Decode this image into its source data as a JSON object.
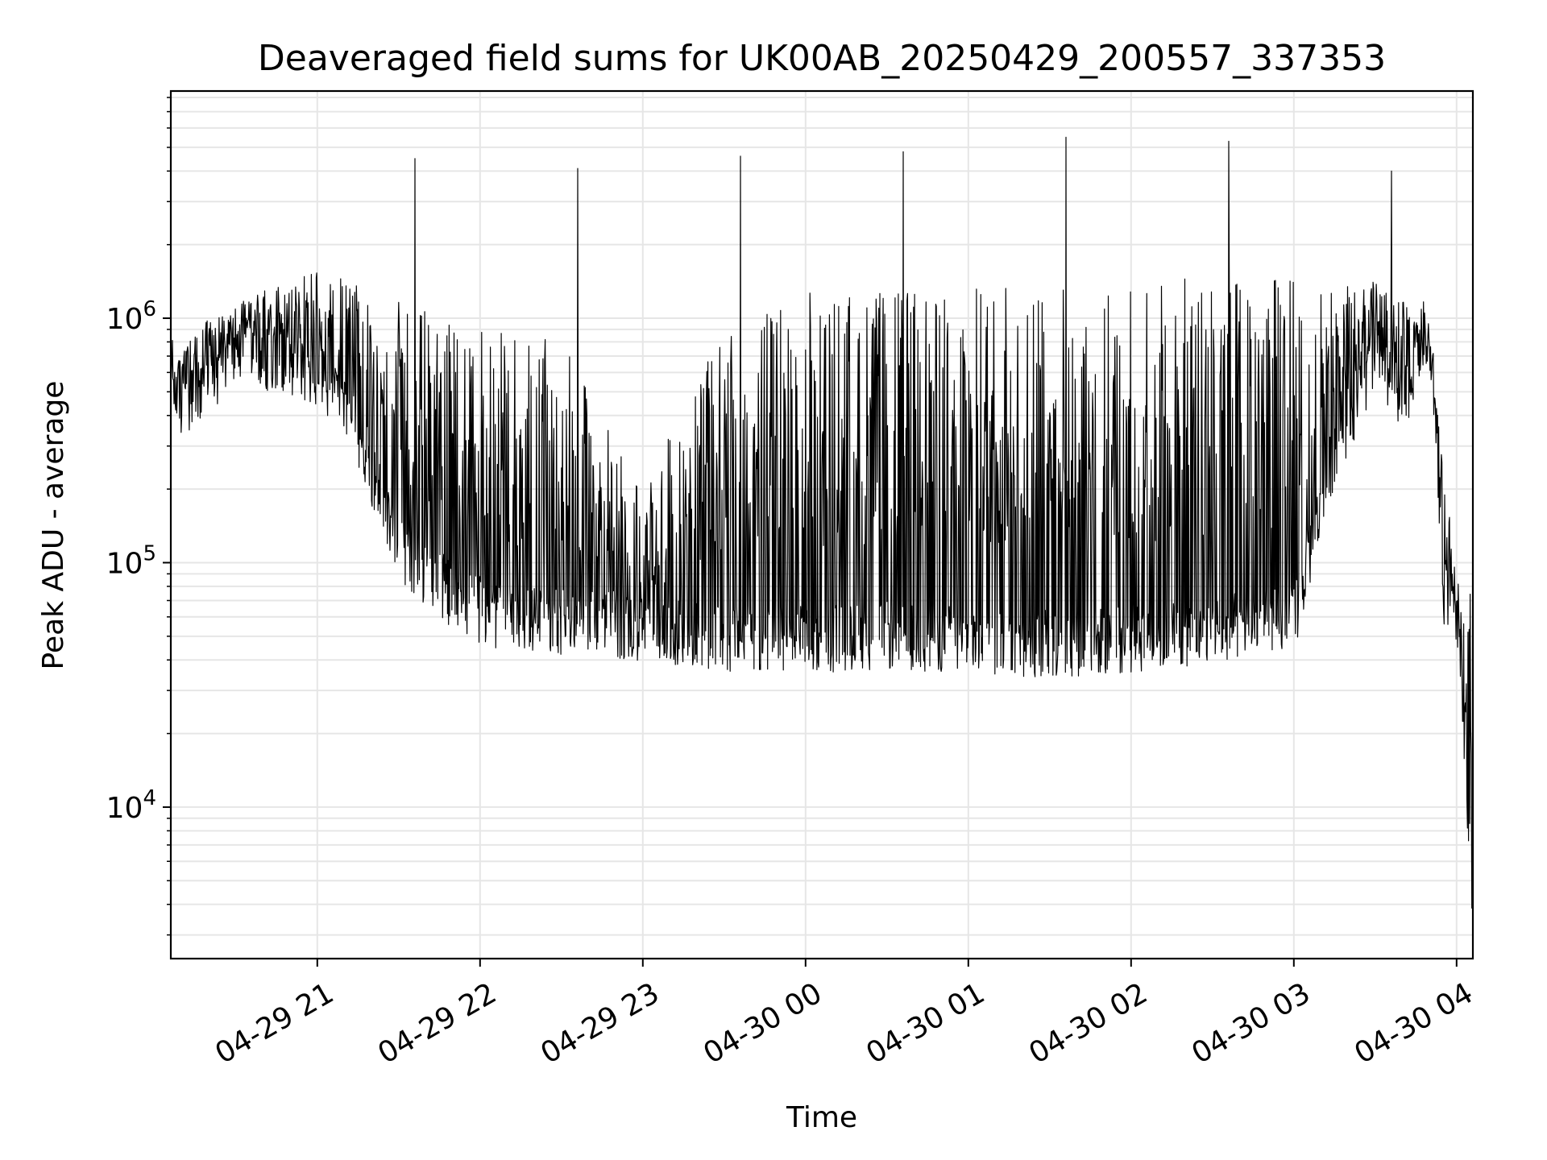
{
  "chart_data": {
    "type": "line",
    "title": "Deaveraged field sums for UK00AB_20250429_200557_337353",
    "xlabel": "Time",
    "ylabel": "Peak ADU - average",
    "yscale": "log",
    "ylim": [
      2400,
      8500000
    ],
    "xlim": [
      "2025-04-29 20:06",
      "2025-04-30 04:06"
    ],
    "x_ticks": [
      "2025-04-29 21:00",
      "2025-04-29 22:00",
      "2025-04-29 23:00",
      "2025-04-30 00:00",
      "2025-04-30 01:00",
      "2025-04-30 02:00",
      "2025-04-30 03:00",
      "2025-04-30 04:00"
    ],
    "x_tick_labels": [
      "04-29 21",
      "04-29 22",
      "04-29 23",
      "04-30 00",
      "04-30 01",
      "04-30 02",
      "04-30 03",
      "04-30 04"
    ],
    "y_ticks": [
      10000,
      100000,
      1000000
    ],
    "y_tick_labels": [
      {
        "base": "10",
        "exp": "4"
      },
      {
        "base": "10",
        "exp": "5"
      },
      {
        "base": "10",
        "exp": "6"
      }
    ],
    "grid": true,
    "line_color": "#000000",
    "grid_color": "#e6e6e6",
    "series": [
      {
        "baseline": [
          {
            "x": "2025-04-29 20:06",
            "y": 650000
          },
          {
            "x": "2025-04-29 20:10",
            "y": 450000
          },
          {
            "x": "2025-04-29 20:20",
            "y": 500000
          },
          {
            "x": "2025-04-29 20:30",
            "y": 750000
          },
          {
            "x": "2025-04-29 20:50",
            "y": 700000
          },
          {
            "x": "2025-04-29 21:10",
            "y": 500000
          },
          {
            "x": "2025-04-29 21:30",
            "y": 120000
          },
          {
            "x": "2025-04-29 21:50",
            "y": 75000
          },
          {
            "x": "2025-04-29 22:10",
            "y": 60000
          },
          {
            "x": "2025-04-29 22:40",
            "y": 60000
          },
          {
            "x": "2025-04-29 23:00",
            "y": 55000
          },
          {
            "x": "2025-04-29 23:30",
            "y": 50000
          },
          {
            "x": "2025-04-30 00:00",
            "y": 50000
          },
          {
            "x": "2025-04-30 00:30",
            "y": 52000
          },
          {
            "x": "2025-04-30 01:00",
            "y": 50000
          },
          {
            "x": "2025-04-30 01:30",
            "y": 48000
          },
          {
            "x": "2025-04-30 02:00",
            "y": 50000
          },
          {
            "x": "2025-04-30 02:30",
            "y": 55000
          },
          {
            "x": "2025-04-30 03:00",
            "y": 60000
          },
          {
            "x": "2025-04-30 03:15",
            "y": 300000
          },
          {
            "x": "2025-04-30 03:30",
            "y": 700000
          },
          {
            "x": "2025-04-30 03:40",
            "y": 450000
          },
          {
            "x": "2025-04-30 03:48",
            "y": 900000
          },
          {
            "x": "2025-04-30 03:52",
            "y": 500000
          },
          {
            "x": "2025-04-30 03:55",
            "y": 80000
          },
          {
            "x": "2025-04-30 04:01",
            "y": 60000
          },
          {
            "x": "2025-04-30 04:03",
            "y": 20000
          },
          {
            "x": "2025-04-30 04:06",
            "y": 4000
          }
        ],
        "envelope_upper": [
          {
            "x": "2025-04-29 20:06",
            "y": 650000
          },
          {
            "x": "2025-04-29 20:20",
            "y": 1000000
          },
          {
            "x": "2025-04-29 20:40",
            "y": 1300000
          },
          {
            "x": "2025-04-29 21:00",
            "y": 1600000
          },
          {
            "x": "2025-04-29 21:20",
            "y": 1300000
          },
          {
            "x": "2025-04-29 21:40",
            "y": 1100000
          },
          {
            "x": "2025-04-29 22:00",
            "y": 900000
          },
          {
            "x": "2025-04-29 22:30",
            "y": 800000
          },
          {
            "x": "2025-04-29 23:00",
            "y": 200000
          },
          {
            "x": "2025-04-29 23:30",
            "y": 900000
          },
          {
            "x": "2025-04-30 00:00",
            "y": 1300000
          },
          {
            "x": "2025-04-30 00:30",
            "y": 1300000
          },
          {
            "x": "2025-04-30 01:00",
            "y": 1350000
          },
          {
            "x": "2025-04-30 02:00",
            "y": 1400000
          },
          {
            "x": "2025-04-30 03:00",
            "y": 1550000
          },
          {
            "x": "2025-04-30 03:30",
            "y": 1400000
          },
          {
            "x": "2025-04-30 03:50",
            "y": 1000000
          },
          {
            "x": "2025-04-30 04:00",
            "y": 80000
          }
        ],
        "spikes": [
          {
            "x": "2025-04-29 21:36",
            "y": 4500000
          },
          {
            "x": "2025-04-29 22:36",
            "y": 4100000
          },
          {
            "x": "2025-04-29 23:36",
            "y": 4600000
          },
          {
            "x": "2025-04-30 00:36",
            "y": 4800000
          },
          {
            "x": "2025-04-30 01:36",
            "y": 5500000
          },
          {
            "x": "2025-04-30 02:36",
            "y": 5300000
          },
          {
            "x": "2025-04-30 03:36",
            "y": 4000000
          }
        ],
        "minimum": {
          "x": "2025-04-30 04:06",
          "y": 4000
        }
      }
    ]
  }
}
